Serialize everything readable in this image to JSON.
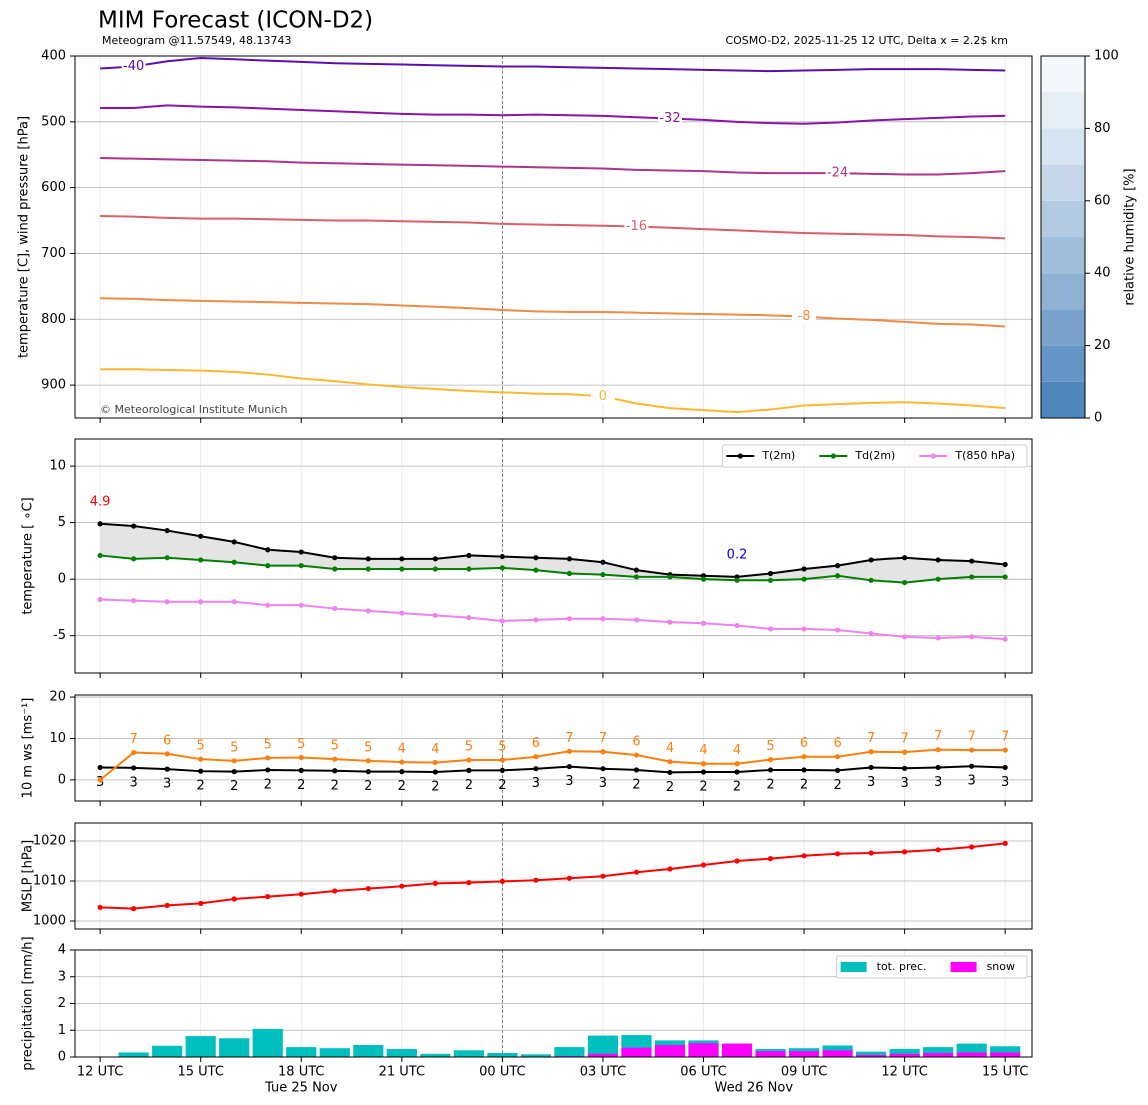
{
  "chart_data": [
    {
      "type": "contour",
      "title": "MIM Forecast (ICON-D2)",
      "subtitle_left": "Meteogram @11.57549, 48.13743",
      "subtitle_right": "COSMO-D2, 2025-11-25 12 UTC, Delta x = 2.2$ km",
      "copyright": "© Meteorological Institute Munich",
      "ylabel": "temperature [C], wind pressure [hPa]",
      "x": [
        0,
        1,
        2,
        3,
        4,
        5,
        6,
        7,
        8,
        9,
        10,
        11,
        12,
        13,
        14,
        15,
        16,
        17,
        18,
        19,
        20,
        21,
        22,
        23,
        24,
        25,
        26,
        27
      ],
      "xlim": [
        -0.75,
        27.8
      ],
      "xticks": [
        0,
        3,
        6,
        9,
        12,
        15,
        18,
        21,
        24,
        27
      ],
      "day_boundary": 12,
      "ylim": [
        950,
        400
      ],
      "yticks": [
        400,
        500,
        600,
        700,
        800,
        900
      ],
      "grid": true,
      "series": [
        {
          "name": "-40",
          "color": "#5a10b0",
          "values": [
            419,
            416,
            408,
            403,
            405,
            407,
            409,
            411,
            412,
            413,
            414,
            415,
            416,
            416,
            417,
            418,
            419,
            420,
            421,
            422,
            423,
            422,
            421,
            420,
            420,
            420,
            421,
            422
          ]
        },
        {
          "name": "-32",
          "color": "#8b14a8",
          "values": [
            479,
            479,
            475,
            477,
            478,
            480,
            482,
            484,
            486,
            488,
            489,
            489,
            490,
            489,
            490,
            491,
            493,
            495,
            497,
            500,
            502,
            503,
            501,
            498,
            496,
            494,
            492,
            491
          ]
        },
        {
          "name": "-24",
          "color": "#b0338a",
          "values": [
            555,
            556,
            557,
            558,
            559,
            560,
            562,
            563,
            564,
            565,
            566,
            567,
            568,
            569,
            570,
            571,
            573,
            574,
            575,
            577,
            578,
            578,
            578,
            579,
            580,
            580,
            578,
            575
          ]
        },
        {
          "name": "-16",
          "color": "#d9606a",
          "values": [
            643,
            644,
            646,
            647,
            647,
            648,
            649,
            650,
            650,
            651,
            652,
            653,
            655,
            656,
            657,
            658,
            659,
            661,
            663,
            665,
            667,
            669,
            670,
            671,
            672,
            674,
            675,
            677
          ]
        },
        {
          "name": "-8",
          "color": "#f08a45",
          "values": [
            768,
            769,
            771,
            772,
            773,
            774,
            775,
            776,
            777,
            779,
            781,
            783,
            786,
            788,
            789,
            789,
            790,
            791,
            792,
            793,
            794,
            796,
            799,
            801,
            804,
            807,
            808,
            811
          ]
        },
        {
          "name": "0",
          "color": "#fbb830",
          "values": [
            876,
            876,
            877,
            878,
            880,
            884,
            890,
            894,
            899,
            903,
            906,
            909,
            911,
            913,
            914,
            917,
            928,
            935,
            938,
            941,
            937,
            931,
            929,
            927,
            926,
            928,
            931,
            935
          ]
        }
      ],
      "colorbar": {
        "label": "relative humidity [%]",
        "lim": [
          0,
          100
        ],
        "ticks": [
          0,
          20,
          40,
          60,
          80,
          100
        ],
        "colors": [
          "#5087bb",
          "#6595c4",
          "#7aa3cc",
          "#8eb1d4",
          "#a1bedb",
          "#b3cbe2",
          "#c5d7e9",
          "#d6e3f0",
          "#e6eef6",
          "#f4f8fc"
        ]
      }
    },
    {
      "type": "line",
      "ylabel": "temperature [ ∘C]",
      "x": [
        0,
        1,
        2,
        3,
        4,
        5,
        6,
        7,
        8,
        9,
        10,
        11,
        12,
        13,
        14,
        15,
        16,
        17,
        18,
        19,
        20,
        21,
        22,
        23,
        24,
        25,
        26,
        27
      ],
      "xlim": [
        -0.75,
        27.8
      ],
      "xticks": [
        0,
        3,
        6,
        9,
        12,
        15,
        18,
        21,
        24,
        27
      ],
      "day_boundary": 12,
      "ylim": [
        -8.3,
        12.4
      ],
      "yticks": [
        -5,
        0,
        5,
        10
      ],
      "grid": true,
      "legend": "upper right",
      "fill_between": [
        0,
        1
      ],
      "fill_color": "#e4e4e4",
      "series": [
        {
          "name": "T(2m)",
          "color": "#000000",
          "values": [
            4.9,
            4.7,
            4.3,
            3.8,
            3.3,
            2.6,
            2.4,
            1.9,
            1.8,
            1.8,
            1.8,
            2.1,
            2.0,
            1.9,
            1.8,
            1.5,
            0.8,
            0.4,
            0.3,
            0.2,
            0.5,
            0.9,
            1.2,
            1.7,
            1.9,
            1.7,
            1.6,
            1.3
          ]
        },
        {
          "name": "Td(2m)",
          "color": "#008000",
          "values": [
            2.1,
            1.8,
            1.9,
            1.7,
            1.5,
            1.2,
            1.2,
            0.9,
            0.9,
            0.9,
            0.9,
            0.9,
            1.0,
            0.8,
            0.5,
            0.4,
            0.2,
            0.2,
            0.0,
            -0.1,
            -0.1,
            0.0,
            0.3,
            -0.1,
            -0.3,
            0.0,
            0.2,
            0.2
          ]
        },
        {
          "name": "T(850 hPa)",
          "color": "#ee82ee",
          "values": [
            -1.8,
            -1.9,
            -2.0,
            -2.0,
            -2.0,
            -2.3,
            -2.3,
            -2.6,
            -2.8,
            -3.0,
            -3.2,
            -3.4,
            -3.7,
            -3.6,
            -3.5,
            -3.5,
            -3.6,
            -3.8,
            -3.9,
            -4.1,
            -4.4,
            -4.4,
            -4.5,
            -4.8,
            -5.1,
            -5.2,
            -5.1,
            -5.3
          ]
        }
      ],
      "annotations": [
        {
          "text": "4.9",
          "x": 0,
          "y": 4.9,
          "color": "#ff0000"
        },
        {
          "text": "0.2",
          "x": 19,
          "y": 0.2,
          "color": "#0000ff"
        }
      ]
    },
    {
      "type": "line",
      "ylabel": "10 m ws [ms⁻¹]",
      "x": [
        0,
        1,
        2,
        3,
        4,
        5,
        6,
        7,
        8,
        9,
        10,
        11,
        12,
        13,
        14,
        15,
        16,
        17,
        18,
        19,
        20,
        21,
        22,
        23,
        24,
        25,
        26,
        27
      ],
      "xlim": [
        -0.75,
        27.8
      ],
      "xticks": [
        0,
        3,
        6,
        9,
        12,
        15,
        18,
        21,
        24,
        27
      ],
      "day_boundary": 12,
      "ylim": [
        -5.1,
        20.5
      ],
      "yticks": [
        0,
        10,
        20
      ],
      "grid": true,
      "series": [
        {
          "color": "#000000",
          "values": [
            3.0,
            2.9,
            2.6,
            2.1,
            2.0,
            2.4,
            2.3,
            2.2,
            2.0,
            2.0,
            1.9,
            2.3,
            2.3,
            2.7,
            3.2,
            2.7,
            2.4,
            1.8,
            1.9,
            1.9,
            2.4,
            2.4,
            2.3,
            3.0,
            2.8,
            3.0,
            3.3,
            3.0
          ],
          "value_labels": [
            "3",
            "3",
            "3",
            "2",
            "2",
            "2",
            "2",
            "2",
            "2",
            "2",
            "2",
            "2",
            "2",
            "3",
            "3",
            "3",
            "2",
            "2",
            "2",
            "2",
            "2",
            "2",
            "2",
            "3",
            "3",
            "3",
            "3",
            "3"
          ]
        },
        {
          "color": "#ff7f0e",
          "values": [
            0,
            6.6,
            6.3,
            5.0,
            4.6,
            5.3,
            5.4,
            5.0,
            4.6,
            4.3,
            4.2,
            4.8,
            4.8,
            5.6,
            6.9,
            6.8,
            6.0,
            4.4,
            3.9,
            3.9,
            4.9,
            5.6,
            5.6,
            6.8,
            6.7,
            7.3,
            7.2,
            7.2
          ],
          "value_labels": [
            null,
            "7",
            "6",
            "5",
            "5",
            "5",
            "5",
            "5",
            "5",
            "4",
            "4",
            "5",
            "5",
            "6",
            "7",
            "7",
            "6",
            "4",
            "4",
            "4",
            "5",
            "6",
            "6",
            "7",
            "7",
            "7",
            "7",
            "7"
          ]
        }
      ]
    },
    {
      "type": "line",
      "ylabel": "MSLP [hPa]",
      "x": [
        0,
        1,
        2,
        3,
        4,
        5,
        6,
        7,
        8,
        9,
        10,
        11,
        12,
        13,
        14,
        15,
        16,
        17,
        18,
        19,
        20,
        21,
        22,
        23,
        24,
        25,
        26,
        27
      ],
      "xlim": [
        -0.75,
        27.8
      ],
      "xticks": [
        0,
        3,
        6,
        9,
        12,
        15,
        18,
        21,
        24,
        27
      ],
      "day_boundary": 12,
      "ylim": [
        998,
        1024.5
      ],
      "yticks": [
        1000,
        1010,
        1020
      ],
      "grid": true,
      "series": [
        {
          "color": "#ff0000",
          "values": [
            1003.4,
            1003.1,
            1003.9,
            1004.4,
            1005.5,
            1006.1,
            1006.7,
            1007.5,
            1008.1,
            1008.7,
            1009.4,
            1009.6,
            1009.9,
            1010.2,
            1010.7,
            1011.2,
            1012.2,
            1013.0,
            1014.0,
            1015.0,
            1015.6,
            1016.3,
            1016.8,
            1017.0,
            1017.3,
            1017.8,
            1018.5,
            1019.4
          ]
        }
      ]
    },
    {
      "type": "bar",
      "ylabel": "precipitation [mm/h]",
      "x": [
        0,
        1,
        2,
        3,
        4,
        5,
        6,
        7,
        8,
        9,
        10,
        11,
        12,
        13,
        14,
        15,
        16,
        17,
        18,
        19,
        20,
        21,
        22,
        23,
        24,
        25,
        26,
        27
      ],
      "xlim": [
        -0.75,
        27.8
      ],
      "xticks": [
        {
          "value": 0,
          "label": "12 UTC"
        },
        {
          "value": 3,
          "label": "15 UTC"
        },
        {
          "value": 6,
          "label": "18 UTC"
        },
        {
          "value": 9,
          "label": "21 UTC"
        },
        {
          "value": 12,
          "label": "00 UTC"
        },
        {
          "value": 15,
          "label": "03 UTC"
        },
        {
          "value": 18,
          "label": "06 UTC"
        },
        {
          "value": 21,
          "label": "09 UTC"
        },
        {
          "value": 24,
          "label": "12 UTC"
        },
        {
          "value": 27,
          "label": "15 UTC"
        }
      ],
      "date_labels": [
        {
          "value": 6,
          "label": "Tue 25 Nov"
        },
        {
          "value": 19.5,
          "label": "Wed 26 Nov"
        }
      ],
      "day_boundary": 12,
      "ylim": [
        0,
        4
      ],
      "yticks": [
        0,
        1,
        2,
        3,
        4
      ],
      "grid": true,
      "legend": "upper right",
      "series": [
        {
          "name": "tot. prec.",
          "color": "#00bfbf",
          "values": [
            0,
            0.17,
            0.42,
            0.78,
            0.7,
            1.05,
            0.37,
            0.33,
            0.45,
            0.3,
            0.12,
            0.25,
            0.15,
            0.1,
            0.37,
            0.8,
            0.82,
            0.62,
            0.62,
            0.5,
            0.3,
            0.33,
            0.43,
            0.2,
            0.3,
            0.37,
            0.5,
            0.4
          ]
        },
        {
          "name": "snow",
          "color": "#ff00ff",
          "values": [
            0,
            0,
            0,
            0,
            0,
            0,
            0,
            0,
            0,
            0,
            0,
            0,
            0,
            0,
            0.03,
            0.12,
            0.35,
            0.45,
            0.52,
            0.5,
            0.22,
            0.22,
            0.25,
            0.08,
            0.12,
            0.15,
            0.17,
            0.17
          ]
        }
      ]
    }
  ]
}
